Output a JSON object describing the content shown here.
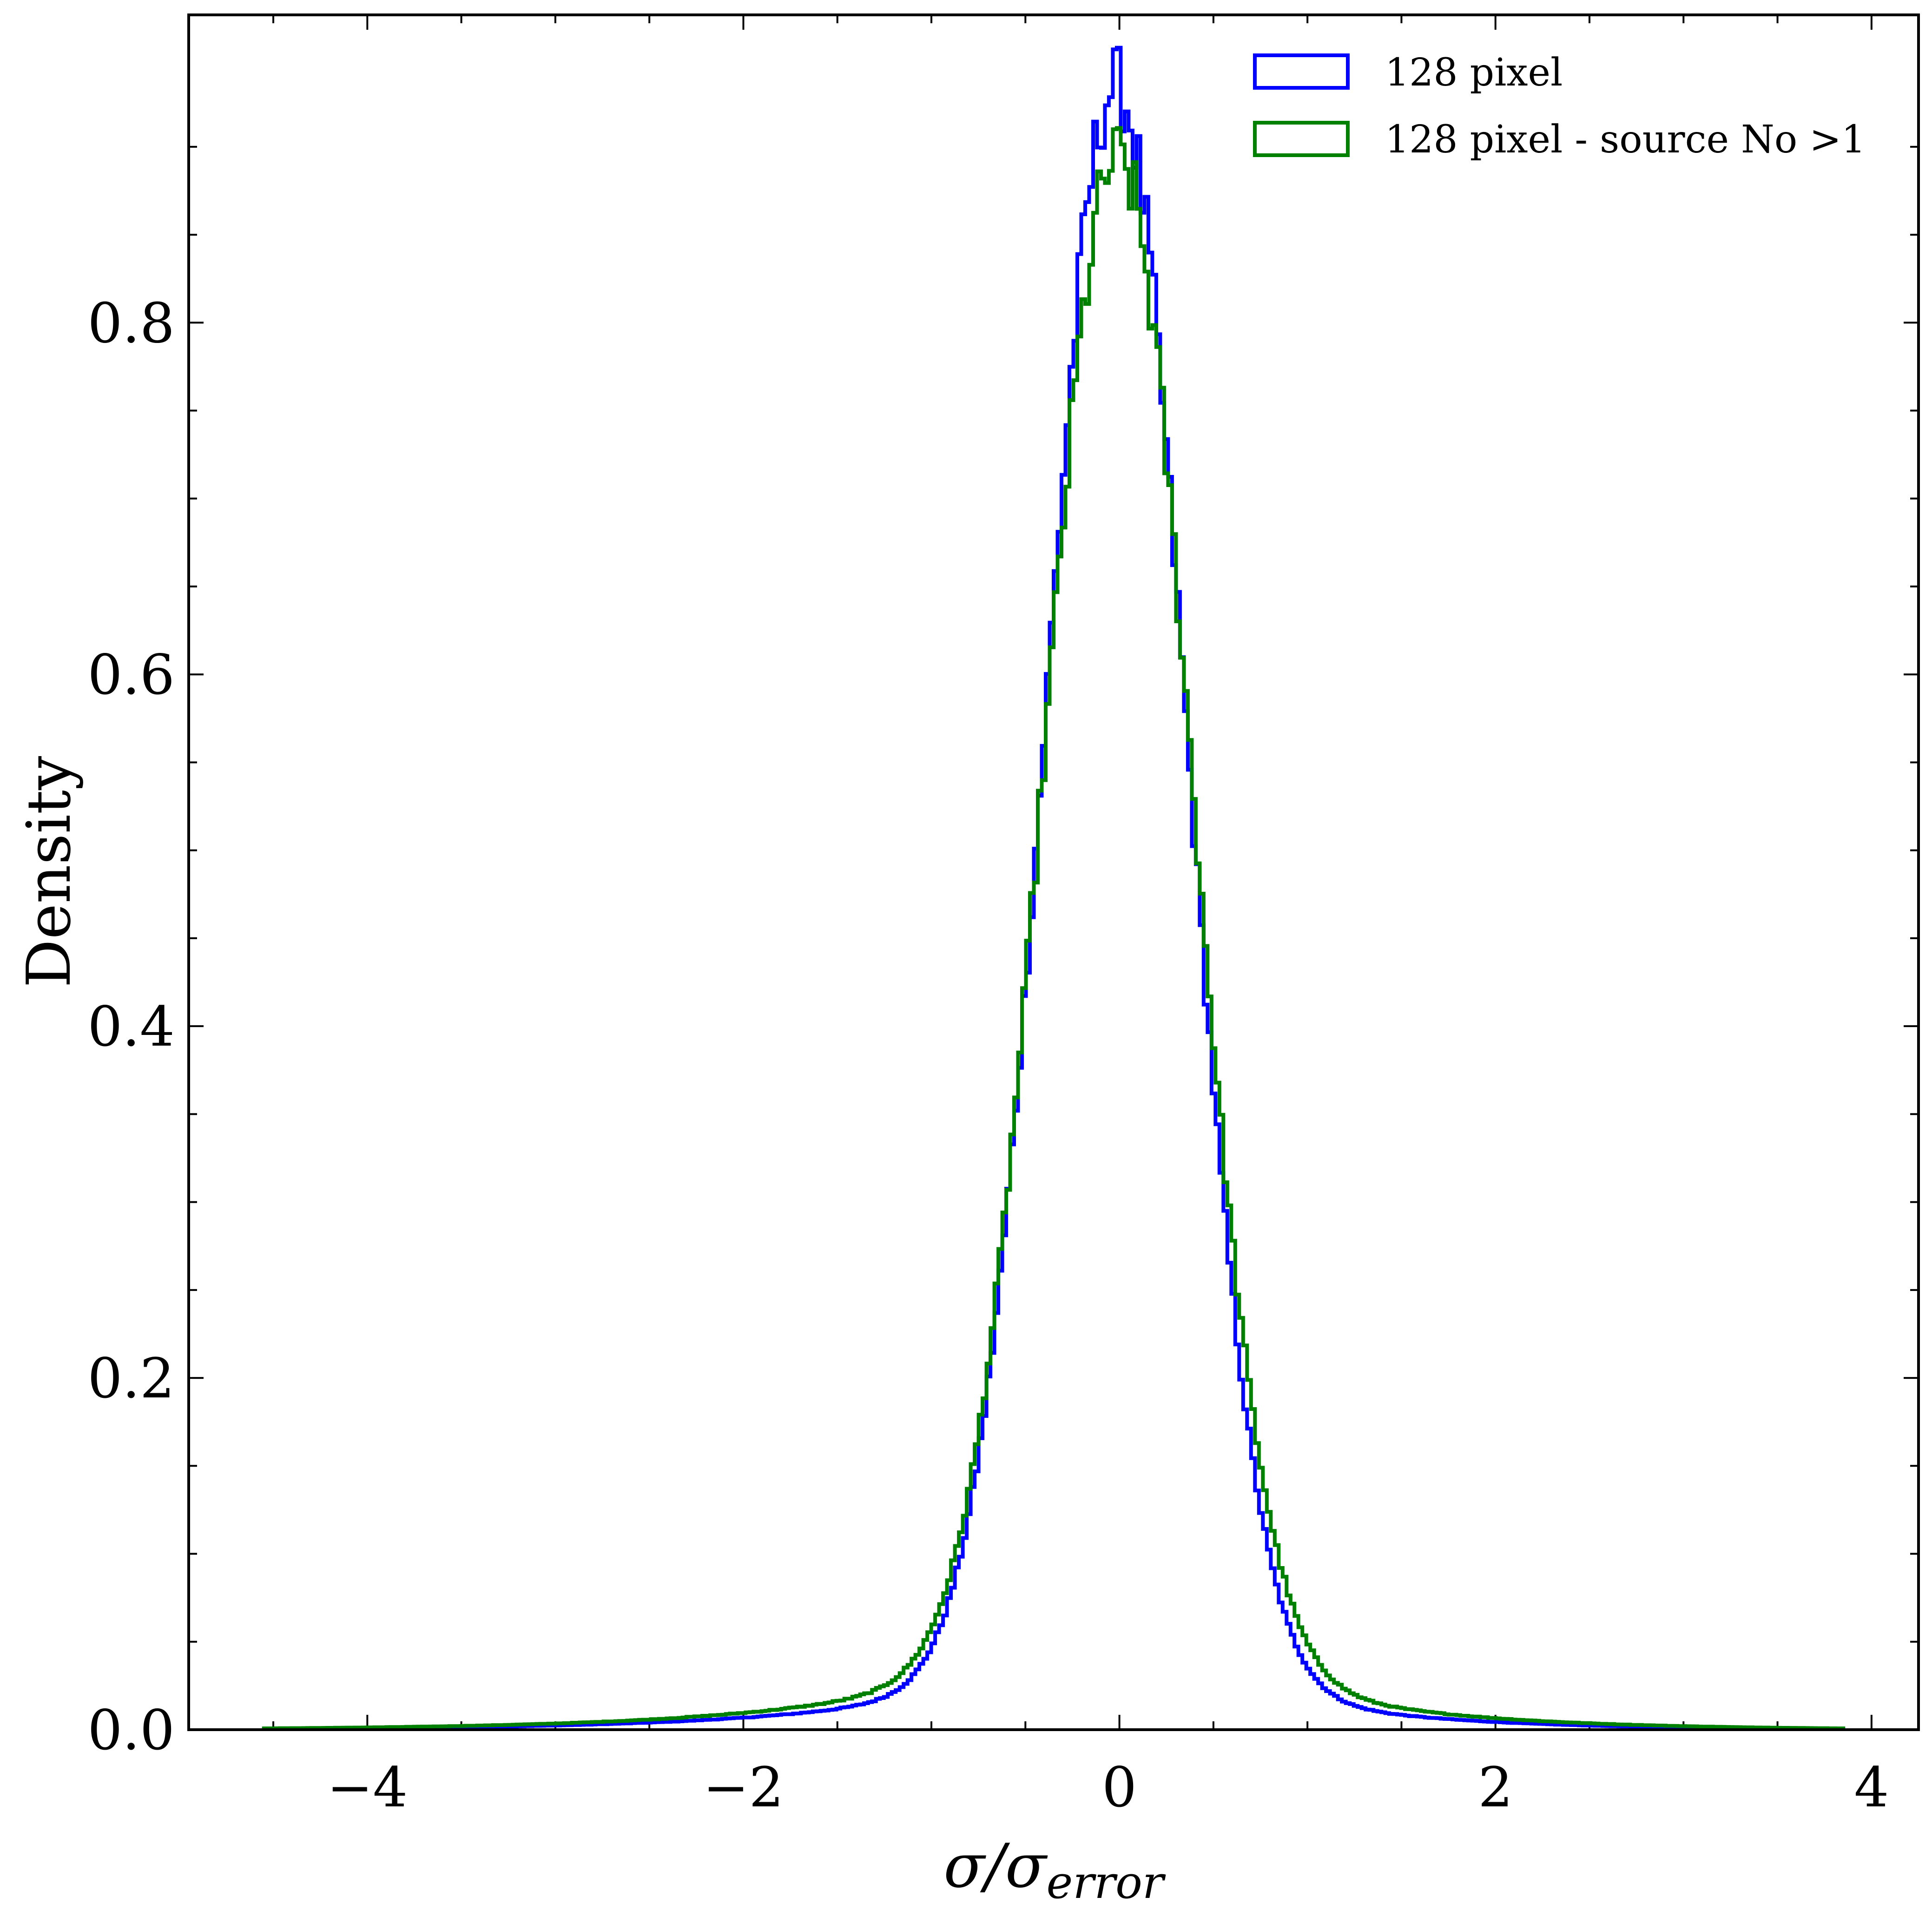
{
  "chart_data": {
    "type": "histogram",
    "title": "",
    "xlabel": "σ/σ_error",
    "xlabel_main": "σ/σ",
    "xlabel_sub": "error",
    "ylabel": "Density",
    "xlim": [
      -4.95,
      4.25
    ],
    "ylim": [
      0.0,
      0.975
    ],
    "xticks": [
      -4,
      -2,
      0,
      2,
      4
    ],
    "xtick_labels": [
      "−4",
      "−2",
      "0",
      "2",
      "4"
    ],
    "yticks": [
      0.0,
      0.2,
      0.4,
      0.6,
      0.8
    ],
    "ytick_labels": [
      "0.0",
      "0.2",
      "0.4",
      "0.6",
      "0.8"
    ],
    "legend_position": "top-right",
    "series": [
      {
        "name": "128 pixel",
        "color": "#0000ff",
        "histtype": "step",
        "x_range": [
          -4.55,
          3.85
        ],
        "mode": -0.02,
        "peak": 0.935,
        "core_sigma": 0.37,
        "left_tail": [
          0.055,
          0.95
        ],
        "right_tail": [
          0.055,
          0.8
        ]
      },
      {
        "name": "128 pixel - source No >1",
        "color": "#008000",
        "histtype": "step",
        "x_range": [
          -4.55,
          3.85
        ],
        "mode": -0.01,
        "peak": 0.893,
        "core_sigma": 0.385,
        "left_tail": [
          0.07,
          1.0
        ],
        "right_tail": [
          0.07,
          0.85
        ]
      }
    ]
  }
}
